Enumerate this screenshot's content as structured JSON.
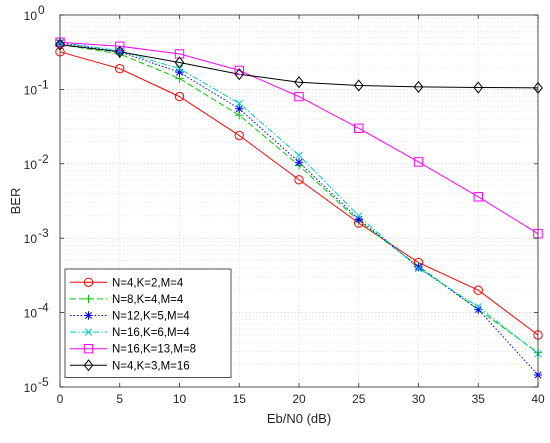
{
  "chart_data": {
    "type": "line",
    "xlabel": "Eb/N0 (dB)",
    "ylabel": "BER",
    "xlim": [
      0,
      40
    ],
    "ylim": [
      1e-05,
      1
    ],
    "yscale": "log",
    "grid": true,
    "legend_position": "bottom-left",
    "x": [
      0,
      5,
      10,
      15,
      20,
      25,
      30,
      35,
      40
    ],
    "x_ticks": [
      "0",
      "5",
      "10",
      "15",
      "20",
      "25",
      "30",
      "35",
      "40"
    ],
    "y_ticks": [
      {
        "base": "10",
        "exp": "0"
      },
      {
        "base": "10",
        "exp": "-1"
      },
      {
        "base": "10",
        "exp": "-2"
      },
      {
        "base": "10",
        "exp": "-3"
      },
      {
        "base": "10",
        "exp": "-4"
      },
      {
        "base": "10",
        "exp": "-5"
      }
    ],
    "series": [
      {
        "name": "N=4,K=2,M=4",
        "color": "#ff0000",
        "marker": "circle",
        "dash": "solid",
        "values": [
          0.32,
          0.19,
          0.08,
          0.024,
          0.0061,
          0.0016,
          0.00047,
          0.0002,
          5e-05
        ]
      },
      {
        "name": "N=8,K=4,M=4",
        "color": "#00cc00",
        "marker": "plus",
        "dash": "dashed",
        "values": [
          0.4,
          0.3,
          0.14,
          0.045,
          0.0095,
          0.0017,
          0.00042,
          0.00011,
          2.9e-05
        ]
      },
      {
        "name": "N=12,K=5,M=4",
        "color": "#0000ff",
        "marker": "asterisk",
        "dash": "dotted",
        "values": [
          0.42,
          0.32,
          0.17,
          0.055,
          0.0105,
          0.0018,
          0.00041,
          0.00011,
          1.45e-05
        ]
      },
      {
        "name": "N=16,K=6,M=4",
        "color": "#00cccc",
        "marker": "x",
        "dash": "dashdot",
        "values": [
          0.43,
          0.33,
          0.19,
          0.065,
          0.013,
          0.002,
          0.00039,
          0.00012,
          2.8e-05
        ]
      },
      {
        "name": "N=16,K=13,M=8",
        "color": "#ff00ff",
        "marker": "square",
        "dash": "solid",
        "values": [
          0.43,
          0.38,
          0.3,
          0.18,
          0.08,
          0.03,
          0.0106,
          0.0036,
          0.00115
        ]
      },
      {
        "name": "N=4,K=3,M=16",
        "color": "#000000",
        "marker": "diamond",
        "dash": "solid",
        "values": [
          0.4,
          0.32,
          0.23,
          0.16,
          0.125,
          0.113,
          0.108,
          0.106,
          0.105
        ]
      }
    ]
  }
}
